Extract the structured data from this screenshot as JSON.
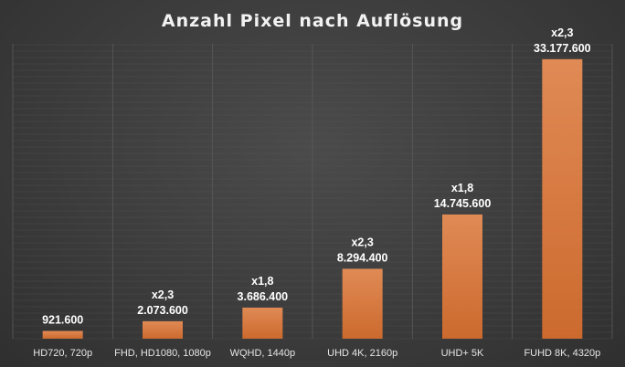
{
  "chart_data": {
    "type": "bar",
    "title": "Anzahl Pixel nach Auflösung",
    "categories": [
      "HD720, 720p",
      "FHD, HD1080, 1080p",
      "WQHD, 1440p",
      "UHD 4K, 2160p",
      "UHD+ 5K",
      "FUHD 8K, 4320p"
    ],
    "values": [
      921600,
      2073600,
      3686400,
      8294400,
      14745600,
      33177600
    ],
    "value_labels": [
      "921.600",
      "2.073.600",
      "3.686.400",
      "8.294.400",
      "14.745.600",
      "33.177.600"
    ],
    "factor_labels": [
      "",
      "x2,3",
      "x1,8",
      "x2,3",
      "x1,8",
      "x2,3"
    ],
    "ylim": [
      0,
      35000000
    ],
    "grid": true,
    "xlabel": "",
    "ylabel": ""
  },
  "colors": {
    "bar_top": "#e08a55",
    "bar_bottom": "#cc6a2e",
    "label": "#ffffff",
    "tick_label": "#e6e6e6",
    "grid": "#5a5a5a"
  }
}
